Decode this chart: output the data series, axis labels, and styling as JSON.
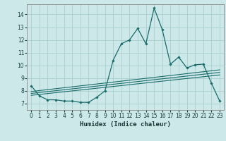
{
  "xlabel": "Humidex (Indice chaleur)",
  "bg_color": "#cce8e8",
  "grid_color": "#aacece",
  "line_color": "#1a6b6b",
  "xlim": [
    -0.5,
    23.5
  ],
  "ylim": [
    6.5,
    14.8
  ],
  "xticks": [
    0,
    1,
    2,
    3,
    4,
    5,
    6,
    7,
    8,
    9,
    10,
    11,
    12,
    13,
    14,
    15,
    16,
    17,
    18,
    19,
    20,
    21,
    22,
    23
  ],
  "yticks": [
    7,
    8,
    9,
    10,
    11,
    12,
    13,
    14
  ],
  "main_x": [
    0,
    1,
    2,
    3,
    4,
    5,
    6,
    7,
    8,
    9,
    10,
    11,
    12,
    13,
    14,
    15,
    16,
    17,
    18,
    19,
    20,
    21,
    22,
    23
  ],
  "main_y": [
    8.4,
    7.6,
    7.3,
    7.3,
    7.2,
    7.2,
    7.1,
    7.1,
    7.5,
    8.0,
    10.4,
    11.7,
    12.0,
    12.9,
    11.7,
    14.5,
    12.8,
    10.1,
    10.65,
    9.8,
    10.05,
    10.1,
    8.6,
    7.2
  ],
  "line1_x": [
    0,
    23
  ],
  "line1_y": [
    7.95,
    9.65
  ],
  "line2_x": [
    0,
    23
  ],
  "line2_y": [
    7.8,
    9.45
  ],
  "line3_x": [
    0,
    23
  ],
  "line3_y": [
    7.65,
    9.25
  ]
}
